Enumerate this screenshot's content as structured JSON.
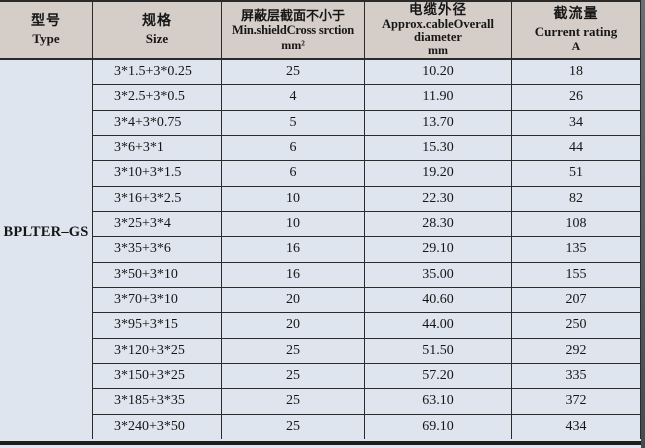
{
  "table": {
    "headers": {
      "type": {
        "zh": "型号",
        "en": "Type"
      },
      "size": {
        "zh": "规格",
        "en": "Size"
      },
      "shield": {
        "zh": "屏蔽层截面不小于",
        "en": "Min.shieldCross srction",
        "unit": "mm²"
      },
      "diameter": {
        "zh": "电缆外径",
        "en": "Approx.cableOverall",
        "en2": "diameter",
        "unit": "mm"
      },
      "current": {
        "zh": "截流量",
        "en": "Current rating",
        "unit": "A"
      }
    },
    "type_value": "BPLTER–GS",
    "rows": [
      {
        "size": "3*1.5+3*0.25",
        "shield": "25",
        "diameter": "10.20",
        "current": "18"
      },
      {
        "size": "3*2.5+3*0.5",
        "shield": "4",
        "diameter": "11.90",
        "current": "26"
      },
      {
        "size": "3*4+3*0.75",
        "shield": "5",
        "diameter": "13.70",
        "current": "34"
      },
      {
        "size": "3*6+3*1",
        "shield": "6",
        "diameter": "15.30",
        "current": "44"
      },
      {
        "size": "3*10+3*1.5",
        "shield": "6",
        "diameter": "19.20",
        "current": "51"
      },
      {
        "size": "3*16+3*2.5",
        "shield": "10",
        "diameter": "22.30",
        "current": "82"
      },
      {
        "size": "3*25+3*4",
        "shield": "10",
        "diameter": "28.30",
        "current": "108"
      },
      {
        "size": "3*35+3*6",
        "shield": "16",
        "diameter": "29.10",
        "current": "135"
      },
      {
        "size": "3*50+3*10",
        "shield": "16",
        "diameter": "35.00",
        "current": "155"
      },
      {
        "size": "3*70+3*10",
        "shield": "20",
        "diameter": "40.60",
        "current": "207"
      },
      {
        "size": "3*95+3*15",
        "shield": "20",
        "diameter": "44.00",
        "current": "250"
      },
      {
        "size": "3*120+3*25",
        "shield": "25",
        "diameter": "51.50",
        "current": "292"
      },
      {
        "size": "3*150+3*25",
        "shield": "25",
        "diameter": "57.20",
        "current": "335"
      },
      {
        "size": "3*185+3*35",
        "shield": "25",
        "diameter": "63.10",
        "current": "372"
      },
      {
        "size": "3*240+3*50",
        "shield": "25",
        "diameter": "69.10",
        "current": "434"
      }
    ]
  },
  "colors": {
    "header_bg": "#d5cec8",
    "body_bg": "#dfe5ef",
    "border": "#2b2b2b"
  }
}
